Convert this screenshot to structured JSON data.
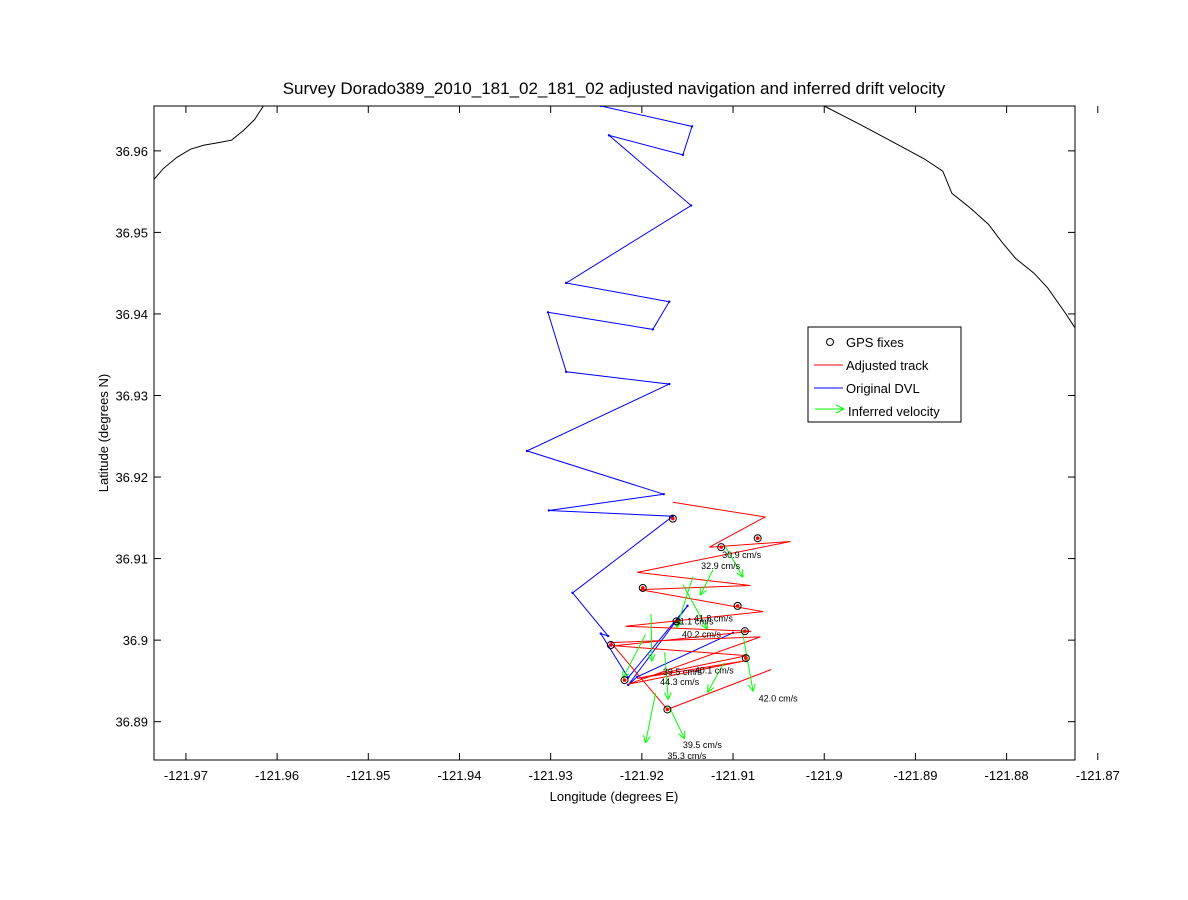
{
  "chart_data": {
    "type": "line",
    "title": "Survey Dorado389_2010_181_02_181_02 adjusted navigation and inferred drift velocity",
    "xlabel": "Longitude (degrees E)",
    "ylabel": "Latitude (degrees N)",
    "xlim": [
      -121.9735,
      -121.8725
    ],
    "ylim": [
      36.8853,
      36.9655
    ],
    "xticks": [
      -121.97,
      -121.96,
      -121.95,
      -121.94,
      -121.93,
      -121.92,
      -121.91,
      -121.9,
      -121.89,
      -121.88,
      -121.87
    ],
    "xtick_labels": [
      "-121.97",
      "-121.96",
      "-121.95",
      "-121.94",
      "-121.93",
      "-121.92",
      "-121.91",
      "-121.9",
      "-121.89",
      "-121.88",
      "-121.87"
    ],
    "yticks": [
      36.89,
      36.9,
      36.91,
      36.92,
      36.93,
      36.94,
      36.95,
      36.96
    ],
    "ytick_labels": [
      "36.89",
      "36.9",
      "36.91",
      "36.92",
      "36.93",
      "36.94",
      "36.95",
      "36.96"
    ],
    "grid": false,
    "legend": {
      "position": "right",
      "entries": [
        {
          "label": "GPS fixes",
          "marker": "circle",
          "color": "#000000"
        },
        {
          "label": "Adjusted track",
          "marker": "line",
          "color": "#ff0000"
        },
        {
          "label": "Original DVL",
          "marker": "line",
          "color": "#0000ff"
        },
        {
          "label": "Inferred velocity",
          "marker": "arrow",
          "color": "#00ff00"
        }
      ]
    },
    "colors": {
      "coastline": "#000000",
      "dvl": "#0000ff",
      "adjusted": "#ff0000",
      "velocity": "#00ff00",
      "gps": "#000000"
    },
    "coastline_west": {
      "x": [
        -121.9735,
        -121.9725,
        -121.971,
        -121.9695,
        -121.968,
        -121.9665,
        -121.965,
        -121.9637,
        -121.9625,
        -121.9615
      ],
      "y": [
        36.9565,
        36.9578,
        36.9592,
        36.9602,
        36.9607,
        36.961,
        36.9613,
        36.9625,
        36.9638,
        36.9655
      ]
    },
    "coastline_east": {
      "x": [
        -121.9,
        -121.896,
        -121.892,
        -121.889,
        -121.887,
        -121.886,
        -121.884,
        -121.882,
        -121.8805,
        -121.879,
        -121.877,
        -121.8755,
        -121.8735,
        -121.8725
      ],
      "y": [
        36.9655,
        36.9632,
        36.9608,
        36.959,
        36.9575,
        36.9548,
        36.953,
        36.951,
        36.9488,
        36.9468,
        36.945,
        36.9432,
        36.94,
        36.9383
      ]
    },
    "series": [
      {
        "name": "Original DVL",
        "color": "#0000ff",
        "x": [
          -121.9245,
          -121.9145,
          -121.9155,
          -121.9236,
          -121.9146,
          -121.9283,
          -121.917,
          -121.9188,
          -121.9303,
          -121.9283,
          -121.917,
          -121.9326,
          -121.9176,
          -121.9302,
          -121.9166,
          -121.9276,
          -121.9237,
          -121.9245,
          -121.9215,
          -121.915,
          -121.9215,
          -121.9205,
          -121.91
        ],
        "y": [
          36.9655,
          36.963,
          36.9595,
          36.9619,
          36.9533,
          36.9438,
          36.9415,
          36.9381,
          36.9402,
          36.9329,
          36.9314,
          36.9232,
          36.9179,
          36.9159,
          36.9152,
          36.9058,
          36.9005,
          36.9008,
          36.8954,
          36.9042,
          36.8945,
          36.8955,
          36.9009
        ]
      },
      {
        "name": "Adjusted track",
        "color": "#ff0000",
        "x": [
          -121.9166,
          -121.9065,
          -121.9126,
          -121.9037,
          -121.9205,
          -121.9081,
          -121.9202,
          -121.9067,
          -121.9218,
          -121.908,
          -121.923,
          -121.9085,
          -121.9205,
          -121.9085,
          -121.9215,
          -121.907,
          -121.9234,
          -121.9172,
          -121.9058
        ],
        "y": [
          36.9169,
          36.9151,
          36.9114,
          36.9121,
          36.9083,
          36.9067,
          36.9062,
          36.9035,
          36.9017,
          36.9011,
          36.8993,
          36.8981,
          36.8953,
          36.8975,
          36.8946,
          36.9004,
          36.8997,
          36.8915,
          36.8964
        ]
      }
    ],
    "gps_fixes": {
      "x": [
        -121.9166,
        -121.9113,
        -121.9073,
        -121.9199,
        -121.9095,
        -121.9162,
        -121.9087,
        -121.9234,
        -121.9086,
        -121.9219,
        -121.9172
      ],
      "y": [
        36.9149,
        36.9114,
        36.9125,
        36.9064,
        36.9042,
        36.9023,
        36.9011,
        36.8994,
        36.8978,
        36.8951,
        36.8915
      ]
    },
    "velocity_arrows": [
      {
        "x": -121.9108,
        "y": 36.9114,
        "u": 0.0019,
        "v": -0.0037,
        "label": "30.9 cm/s"
      },
      {
        "x": -121.9122,
        "y": 36.9086,
        "u": -0.0014,
        "v": -0.0031,
        "label": "32.9 cm/s"
      },
      {
        "x": -121.9144,
        "y": 36.9078,
        "u": -0.0018,
        "v": -0.0063,
        "label": "41.8 cm/s"
      },
      {
        "x": -121.9155,
        "y": 36.9068,
        "u": 0.0027,
        "v": -0.0055,
        "label": "41.1 cm/s"
      },
      {
        "x": -121.919,
        "y": 36.9032,
        "u": 0.0001,
        "v": -0.0058,
        "label": "40.2 cm/s"
      },
      {
        "x": -121.9196,
        "y": 36.9007,
        "u": -0.0025,
        "v": -0.0054,
        "label": "39.5 cm/s"
      },
      {
        "x": -121.9175,
        "y": 36.8985,
        "u": 0.0004,
        "v": -0.0058,
        "label": "44.3 cm/s"
      },
      {
        "x": -121.911,
        "y": 36.8972,
        "u": -0.0018,
        "v": -0.0036,
        "label": "40.1 cm/s"
      },
      {
        "x": -121.909,
        "y": 36.9012,
        "u": 0.0012,
        "v": -0.0075,
        "label": "42.0 cm/s"
      },
      {
        "x": -121.917,
        "y": 36.8918,
        "u": 0.0017,
        "v": -0.0039,
        "label": "39.5 cm/s"
      },
      {
        "x": -121.9185,
        "y": 36.8935,
        "u": -0.0011,
        "v": -0.0061,
        "label": "35.3 cm/s"
      }
    ],
    "velocity_labels": [
      {
        "x": -121.9112,
        "y": 36.9101,
        "text": "30.9 cm/s"
      },
      {
        "x": -121.9135,
        "y": 36.9087,
        "text": "32.9 cm/s"
      },
      {
        "x": -121.9143,
        "y": 36.9023,
        "text": "41.8 cm/s"
      },
      {
        "x": -121.9164,
        "y": 36.9019,
        "text": "41.1 cm/s"
      },
      {
        "x": -121.9156,
        "y": 36.9003,
        "text": "40.2 cm/s"
      },
      {
        "x": -121.9177,
        "y": 36.8957,
        "text": "39.5 cm/s"
      },
      {
        "x": -121.9142,
        "y": 36.8959,
        "text": "40.1 cm/s"
      },
      {
        "x": -121.918,
        "y": 36.8945,
        "text": "44.3 cm/s"
      },
      {
        "x": -121.9072,
        "y": 36.8925,
        "text": "42.0 cm/s"
      },
      {
        "x": -121.9155,
        "y": 36.8868,
        "text": "39.5 cm/s"
      },
      {
        "x": -121.9172,
        "y": 36.8854,
        "text": "35.3 cm/s"
      }
    ]
  }
}
